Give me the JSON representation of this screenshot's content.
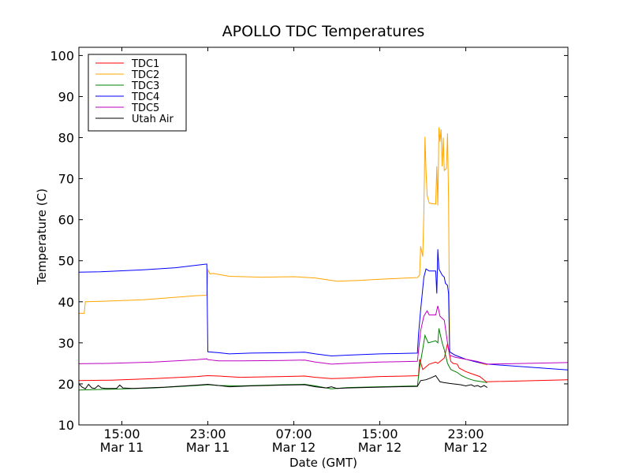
{
  "chart_data": {
    "type": "line",
    "title": "APOLLO TDC Temperatures",
    "xlabel": "Date (GMT)",
    "ylabel": "Temperature (C)",
    "ylim": [
      10,
      102
    ],
    "yticks": [
      10,
      20,
      30,
      40,
      50,
      60,
      70,
      80,
      90,
      100
    ],
    "xlim_hours": [
      11,
      56.5
    ],
    "x_unit": "hours since Mar 11 00:00 GMT",
    "xticks": [
      {
        "value": 15,
        "time": "15:00",
        "date": "Mar 11"
      },
      {
        "value": 23,
        "time": "23:00",
        "date": "Mar 11"
      },
      {
        "value": 31,
        "time": "07:00",
        "date": "Mar 12"
      },
      {
        "value": 39,
        "time": "15:00",
        "date": "Mar 12"
      },
      {
        "value": 47,
        "time": "23:00",
        "date": "Mar 12"
      }
    ],
    "legend_position": "top-left",
    "series": [
      {
        "name": "TDC1",
        "color": "#ff0000",
        "points": [
          [
            11,
            20.8
          ],
          [
            14,
            20.9
          ],
          [
            18,
            21.3
          ],
          [
            22,
            21.8
          ],
          [
            23,
            22.0
          ],
          [
            24,
            21.9
          ],
          [
            26,
            21.6
          ],
          [
            30,
            21.8
          ],
          [
            32,
            21.9
          ],
          [
            33,
            21.6
          ],
          [
            34.5,
            21.3
          ],
          [
            36,
            21.4
          ],
          [
            39,
            21.8
          ],
          [
            41.5,
            21.9
          ],
          [
            42.6,
            22.0
          ],
          [
            42.7,
            26.0
          ],
          [
            43.0,
            23.5
          ],
          [
            43.6,
            24.8
          ],
          [
            44.2,
            25.3
          ],
          [
            44.4,
            25.0
          ],
          [
            45.0,
            26.3
          ],
          [
            45.3,
            29.8
          ],
          [
            45.6,
            25.5
          ],
          [
            45.8,
            25.0
          ],
          [
            46.2,
            24.8
          ],
          [
            46.4,
            23.8
          ],
          [
            47.0,
            23.0
          ],
          [
            47.5,
            22.5
          ],
          [
            48.3,
            21.8
          ],
          [
            48.9,
            20.5
          ],
          [
            56.5,
            21.0
          ]
        ]
      },
      {
        "name": "TDC2",
        "color": "#ffa500",
        "points": [
          [
            11,
            37.2
          ],
          [
            11.5,
            37.2
          ],
          [
            11.6,
            40.0
          ],
          [
            13,
            40.1
          ],
          [
            17,
            40.5
          ],
          [
            22,
            41.5
          ],
          [
            22.9,
            41.6
          ],
          [
            23.0,
            47.8
          ],
          [
            23.2,
            46.8
          ],
          [
            23.5,
            46.9
          ],
          [
            25,
            46.2
          ],
          [
            28,
            46.0
          ],
          [
            31,
            46.1
          ],
          [
            33,
            45.8
          ],
          [
            35,
            45.0
          ],
          [
            37,
            45.2
          ],
          [
            39,
            45.5
          ],
          [
            42.5,
            45.9
          ],
          [
            42.7,
            46.5
          ],
          [
            42.8,
            53.5
          ],
          [
            43.0,
            51.0
          ],
          [
            43.1,
            62.0
          ],
          [
            43.2,
            80.2
          ],
          [
            43.3,
            72.0
          ],
          [
            43.4,
            66.0
          ],
          [
            43.6,
            64.0
          ],
          [
            44.2,
            63.8
          ],
          [
            44.3,
            73.0
          ],
          [
            44.4,
            63.5
          ],
          [
            44.5,
            82.5
          ],
          [
            44.6,
            79.0
          ],
          [
            44.7,
            82.0
          ],
          [
            44.8,
            73.0
          ],
          [
            44.9,
            80.0
          ],
          [
            45.0,
            72.0
          ],
          [
            45.2,
            72.5
          ],
          [
            45.3,
            81.0
          ],
          [
            45.4,
            65.0
          ],
          [
            45.5,
            27.8
          ],
          [
            46,
            27.0
          ],
          [
            47,
            26.0
          ],
          [
            48,
            25.3
          ],
          [
            49,
            24.6
          ]
        ]
      },
      {
        "name": "TDC3",
        "color": "#008000",
        "points": [
          [
            11,
            18.5
          ],
          [
            14,
            18.7
          ],
          [
            18,
            19.0
          ],
          [
            22,
            19.6
          ],
          [
            23,
            19.8
          ],
          [
            24,
            19.6
          ],
          [
            26,
            19.5
          ],
          [
            30,
            19.8
          ],
          [
            32,
            19.9
          ],
          [
            33,
            19.5
          ],
          [
            34.5,
            18.8
          ],
          [
            36,
            19.1
          ],
          [
            39,
            19.3
          ],
          [
            42.5,
            19.5
          ],
          [
            42.7,
            24.0
          ],
          [
            43.0,
            28.5
          ],
          [
            43.2,
            31.8
          ],
          [
            43.5,
            30.0
          ],
          [
            44.2,
            30.5
          ],
          [
            44.4,
            30.0
          ],
          [
            44.5,
            33.5
          ],
          [
            44.8,
            30.0
          ],
          [
            45.0,
            28.3
          ],
          [
            45.3,
            25.0
          ],
          [
            45.6,
            23.5
          ],
          [
            46.2,
            22.8
          ],
          [
            46.6,
            22.0
          ],
          [
            47.2,
            21.3
          ],
          [
            47.8,
            20.8
          ],
          [
            48.5,
            20.5
          ],
          [
            49,
            20.3
          ]
        ]
      },
      {
        "name": "TDC4",
        "color": "#0000ff",
        "points": [
          [
            11,
            47.2
          ],
          [
            13,
            47.3
          ],
          [
            17,
            47.8
          ],
          [
            20,
            48.3
          ],
          [
            22.9,
            49.2
          ],
          [
            23.0,
            27.8
          ],
          [
            24,
            27.6
          ],
          [
            25,
            27.3
          ],
          [
            27,
            27.5
          ],
          [
            30,
            27.6
          ],
          [
            32,
            27.7
          ],
          [
            33,
            27.3
          ],
          [
            34.5,
            26.8
          ],
          [
            36,
            27.0
          ],
          [
            39,
            27.3
          ],
          [
            42.5,
            27.5
          ],
          [
            42.6,
            32.0
          ],
          [
            42.8,
            38.0
          ],
          [
            43.1,
            46.0
          ],
          [
            43.3,
            48.0
          ],
          [
            43.6,
            47.5
          ],
          [
            44.2,
            47.5
          ],
          [
            44.3,
            42.0
          ],
          [
            44.4,
            52.8
          ],
          [
            44.5,
            48.0
          ],
          [
            44.8,
            46.5
          ],
          [
            45.0,
            46.0
          ],
          [
            45.1,
            44.5
          ],
          [
            45.3,
            44.0
          ],
          [
            45.4,
            42.0
          ],
          [
            45.5,
            27.8
          ],
          [
            46,
            27.0
          ],
          [
            47,
            26.0
          ],
          [
            48,
            25.3
          ],
          [
            49,
            24.8
          ],
          [
            56.5,
            23.4
          ]
        ]
      },
      {
        "name": "TDC5",
        "color": "#bf00bf",
        "points": [
          [
            11,
            24.9
          ],
          [
            14,
            25.0
          ],
          [
            18,
            25.3
          ],
          [
            22,
            25.9
          ],
          [
            22.9,
            26.1
          ],
          [
            23.0,
            25.9
          ],
          [
            24,
            25.6
          ],
          [
            26,
            25.6
          ],
          [
            30,
            25.7
          ],
          [
            32,
            25.8
          ],
          [
            33,
            25.3
          ],
          [
            34.5,
            24.8
          ],
          [
            36,
            25.0
          ],
          [
            39,
            25.3
          ],
          [
            42.5,
            25.5
          ],
          [
            42.6,
            28.0
          ],
          [
            42.8,
            33.0
          ],
          [
            43.1,
            36.5
          ],
          [
            43.4,
            37.8
          ],
          [
            43.6,
            36.8
          ],
          [
            44.2,
            36.8
          ],
          [
            44.4,
            39.0
          ],
          [
            44.6,
            36.5
          ],
          [
            45.0,
            35.5
          ],
          [
            45.3,
            30.0
          ],
          [
            45.5,
            27.0
          ],
          [
            46,
            26.5
          ],
          [
            47,
            26.0
          ],
          [
            48,
            25.5
          ],
          [
            49,
            24.8
          ],
          [
            56.5,
            25.2
          ]
        ]
      },
      {
        "name": "Utah Air",
        "color": "#000000",
        "points": [
          [
            11,
            20.0
          ],
          [
            11.3,
            19.2
          ],
          [
            11.6,
            18.8
          ],
          [
            11.9,
            19.9
          ],
          [
            12.2,
            19.0
          ],
          [
            12.5,
            18.9
          ],
          [
            12.8,
            19.6
          ],
          [
            13.1,
            19.0
          ],
          [
            13.5,
            18.9
          ],
          [
            14.5,
            18.9
          ],
          [
            14.8,
            19.7
          ],
          [
            15.1,
            19.0
          ],
          [
            16,
            18.9
          ],
          [
            19,
            19.2
          ],
          [
            22,
            19.7
          ],
          [
            23,
            19.9
          ],
          [
            24,
            19.6
          ],
          [
            25,
            19.3
          ],
          [
            27,
            19.5
          ],
          [
            30,
            19.7
          ],
          [
            32,
            19.8
          ],
          [
            33,
            19.3
          ],
          [
            34,
            19.0
          ],
          [
            34.5,
            19.3
          ],
          [
            35,
            18.9
          ],
          [
            36,
            19.0
          ],
          [
            39,
            19.2
          ],
          [
            42.5,
            19.4
          ],
          [
            42.8,
            20.8
          ],
          [
            43.3,
            21.0
          ],
          [
            43.8,
            21.5
          ],
          [
            44.2,
            22.0
          ],
          [
            44.6,
            20.5
          ],
          [
            45.0,
            20.3
          ],
          [
            45.5,
            20.1
          ],
          [
            46.5,
            19.8
          ],
          [
            47.0,
            19.5
          ],
          [
            47.5,
            19.8
          ],
          [
            47.8,
            19.4
          ],
          [
            48.1,
            19.6
          ],
          [
            48.4,
            19.2
          ],
          [
            48.7,
            19.6
          ],
          [
            49,
            19.1
          ]
        ]
      }
    ]
  }
}
